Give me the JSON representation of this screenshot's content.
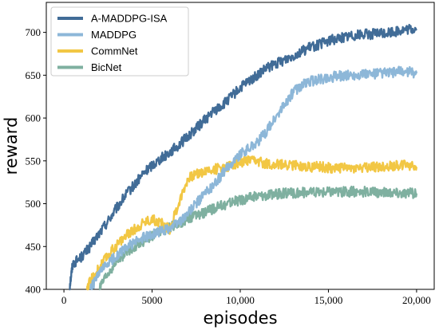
{
  "chart_data": {
    "type": "line",
    "title": "",
    "xlabel": "episodes",
    "ylabel": "reward",
    "xlim": [
      -1000,
      21000
    ],
    "ylim": [
      400,
      735
    ],
    "xticks": [
      0,
      5000,
      10000,
      15000,
      20000
    ],
    "xtick_labels": [
      "0",
      "5000",
      "10,000",
      "15,000",
      "20,000"
    ],
    "yticks": [
      400,
      450,
      500,
      550,
      600,
      650,
      700
    ],
    "ytick_labels": [
      "400",
      "450",
      "500",
      "550",
      "600",
      "650",
      "700"
    ],
    "grid": false,
    "legend_position": "top-left",
    "series": [
      {
        "name": "A-MADDPG-ISA",
        "color": "#416c97",
        "x": [
          300,
          500,
          1000,
          1500,
          2000,
          2500,
          3000,
          3500,
          4000,
          4500,
          5000,
          5500,
          6000,
          6500,
          7000,
          7500,
          8000,
          8500,
          9000,
          9500,
          10000,
          10500,
          11000,
          11500,
          12000,
          12500,
          13000,
          13500,
          14000,
          14500,
          15000,
          15500,
          16000,
          16500,
          17000,
          17500,
          18000,
          18500,
          19000,
          19500,
          20000
        ],
        "values": [
          400,
          430,
          438,
          450,
          465,
          480,
          495,
          510,
          522,
          535,
          545,
          553,
          560,
          568,
          578,
          588,
          598,
          608,
          615,
          625,
          635,
          643,
          650,
          658,
          663,
          668,
          673,
          678,
          683,
          686,
          690,
          693,
          695,
          697,
          698,
          698,
          699,
          700,
          702,
          703,
          704
        ]
      },
      {
        "name": "MADDPG",
        "color": "#8db7d8",
        "x": [
          1500,
          2000,
          2500,
          3000,
          3500,
          4000,
          4500,
          5000,
          5500,
          6000,
          6500,
          7000,
          7500,
          8000,
          8500,
          9000,
          9500,
          10000,
          10500,
          11000,
          11500,
          12000,
          12500,
          13000,
          13500,
          14000,
          14500,
          15000,
          15500,
          16000,
          16500,
          17000,
          17500,
          18000,
          18500,
          19000,
          19500,
          20000
        ],
        "values": [
          400,
          418,
          430,
          440,
          448,
          455,
          460,
          464,
          468,
          472,
          478,
          488,
          500,
          512,
          522,
          535,
          548,
          558,
          565,
          572,
          585,
          600,
          615,
          630,
          638,
          643,
          645,
          647,
          649,
          650,
          650,
          651,
          651,
          652,
          653,
          654,
          654,
          652
        ]
      },
      {
        "name": "CommNet",
        "color": "#f2c744",
        "x": [
          1300,
          1500,
          2000,
          2500,
          3000,
          3500,
          4000,
          4500,
          5000,
          5500,
          6000,
          6500,
          7000,
          7500,
          8000,
          8500,
          9000,
          9500,
          10000,
          10500,
          11000,
          11500,
          12000,
          12500,
          13000,
          13500,
          14000,
          14500,
          15000,
          15500,
          16000,
          16500,
          17000,
          17500,
          18000,
          18500,
          19000,
          19500,
          20000
        ],
        "values": [
          400,
          410,
          425,
          440,
          452,
          462,
          470,
          478,
          482,
          478,
          470,
          500,
          528,
          535,
          538,
          540,
          542,
          545,
          548,
          550,
          549,
          547,
          546,
          545,
          545,
          544,
          543,
          543,
          542,
          542,
          541,
          542,
          542,
          543,
          543,
          544,
          545,
          546,
          543
        ]
      },
      {
        "name": "BicNet",
        "color": "#7fb0a0",
        "x": [
          2000,
          2500,
          3000,
          3500,
          4000,
          4500,
          5000,
          5500,
          6000,
          6500,
          7000,
          7500,
          8000,
          8500,
          9000,
          9500,
          10000,
          10500,
          11000,
          11500,
          12000,
          12500,
          13000,
          13500,
          14000,
          14500,
          15000,
          15500,
          16000,
          16500,
          17000,
          17500,
          18000,
          18500,
          19000,
          19500,
          20000
        ],
        "values": [
          400,
          418,
          432,
          442,
          450,
          456,
          462,
          468,
          472,
          477,
          482,
          486,
          490,
          494,
          498,
          502,
          504,
          507,
          509,
          510,
          511,
          512,
          512,
          513,
          513,
          513,
          514,
          514,
          514,
          514,
          514,
          513,
          513,
          513,
          512,
          512,
          512
        ]
      }
    ]
  }
}
